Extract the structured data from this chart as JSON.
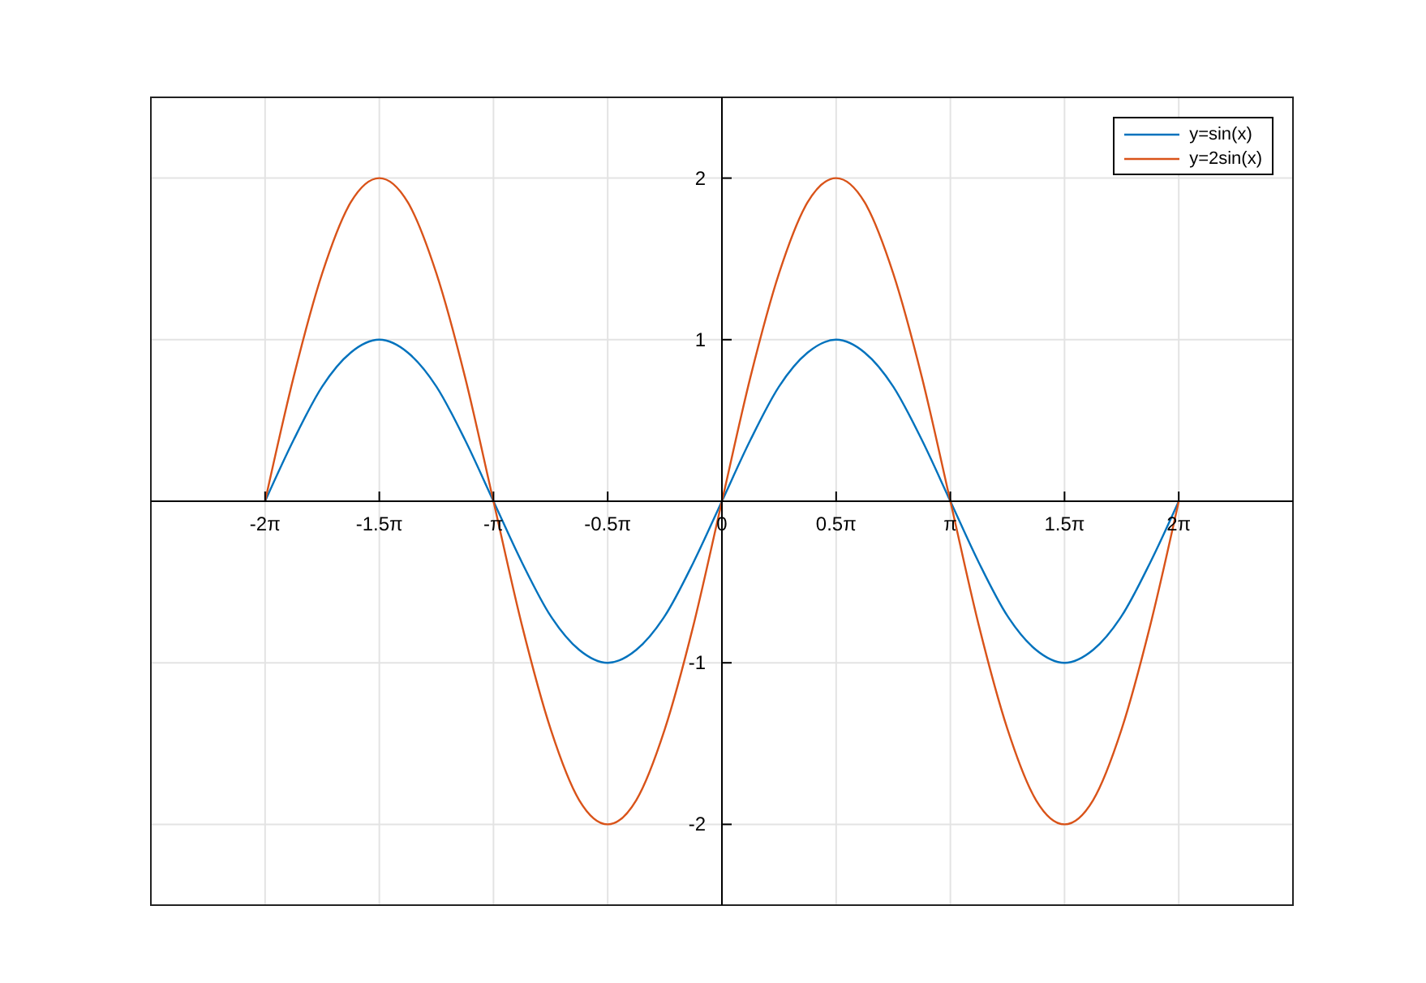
{
  "chart_data": {
    "type": "line",
    "x": [
      -6.283,
      -5.89,
      -5.498,
      -5.105,
      -4.712,
      -4.32,
      -3.927,
      -3.534,
      -3.142,
      -2.749,
      -2.356,
      -1.963,
      -1.571,
      -1.178,
      -0.785,
      -0.393,
      0,
      0.393,
      0.785,
      1.178,
      1.571,
      1.963,
      2.356,
      2.749,
      3.142,
      3.534,
      3.927,
      4.32,
      4.712,
      5.105,
      5.498,
      5.89,
      6.283
    ],
    "series": [
      {
        "name": "y=sin(x)",
        "color": "#0072bd",
        "values": [
          0,
          0.38,
          0.71,
          0.92,
          1,
          0.92,
          0.71,
          0.38,
          0,
          -0.38,
          -0.71,
          -0.92,
          -1,
          -0.92,
          -0.71,
          -0.38,
          0,
          0.38,
          0.71,
          0.92,
          1,
          0.92,
          0.71,
          0.38,
          0,
          -0.38,
          -0.71,
          -0.92,
          -1,
          -0.92,
          -0.71,
          -0.38,
          0
        ]
      },
      {
        "name": "y=2sin(x)",
        "color": "#d95319",
        "values": [
          0,
          0.77,
          1.41,
          1.85,
          2,
          1.85,
          1.41,
          0.77,
          0,
          -0.77,
          -1.41,
          -1.85,
          -2,
          -1.85,
          -1.41,
          -0.77,
          0,
          0.77,
          1.41,
          1.85,
          2,
          1.85,
          1.41,
          0.77,
          0,
          -0.77,
          -1.41,
          -1.85,
          -2,
          -1.85,
          -1.41,
          -0.77,
          0
        ]
      }
    ],
    "xlim": [
      -7.854,
      7.854
    ],
    "xticks": [
      {
        "value": -6.283,
        "label": "-2π"
      },
      {
        "value": -4.712,
        "label": "-1.5π"
      },
      {
        "value": -3.142,
        "label": "-π"
      },
      {
        "value": -1.571,
        "label": "-0.5π"
      },
      {
        "value": 0,
        "label": "0"
      },
      {
        "value": 1.571,
        "label": "0.5π"
      },
      {
        "value": 3.142,
        "label": "π"
      },
      {
        "value": 4.712,
        "label": "1.5π"
      },
      {
        "value": 6.283,
        "label": "2π"
      }
    ],
    "ylim": [
      -2.5,
      2.5
    ],
    "yticks": [
      -2,
      -1,
      1,
      2
    ],
    "grid": true,
    "legend": "top right",
    "marker": "none",
    "line_style": "solid"
  }
}
